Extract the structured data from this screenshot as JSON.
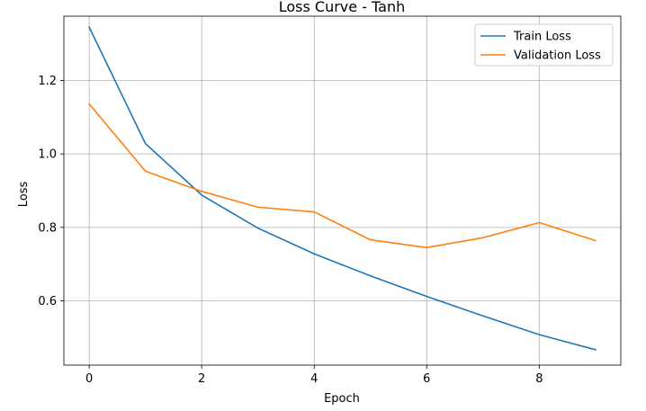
{
  "chart_data": {
    "type": "line",
    "title": "Loss Curve - Tanh",
    "xlabel": "Epoch",
    "ylabel": "Loss",
    "x": [
      0,
      1,
      2,
      3,
      4,
      5,
      6,
      7,
      8,
      9
    ],
    "xlim": [
      -0.45,
      9.45
    ],
    "ylim": [
      0.425,
      1.375
    ],
    "xticks": [
      0,
      2,
      4,
      6,
      8
    ],
    "yticks": [
      0.6,
      0.8,
      1.0,
      1.2
    ],
    "xtick_labels": [
      "0",
      "2",
      "4",
      "6",
      "8"
    ],
    "ytick_labels": [
      "0.6",
      "0.8",
      "1.0",
      "1.2"
    ],
    "grid": true,
    "legend_position": "top-right",
    "series": [
      {
        "name": "Train Loss",
        "color": "#1f77b4",
        "values": [
          1.345,
          1.028,
          0.888,
          0.798,
          0.728,
          0.668,
          0.612,
          0.559,
          0.508,
          0.467
        ]
      },
      {
        "name": "Validation Loss",
        "color": "#ff7f0e",
        "values": [
          1.136,
          0.953,
          0.898,
          0.855,
          0.842,
          0.766,
          0.745,
          0.772,
          0.813,
          0.764
        ]
      }
    ]
  }
}
